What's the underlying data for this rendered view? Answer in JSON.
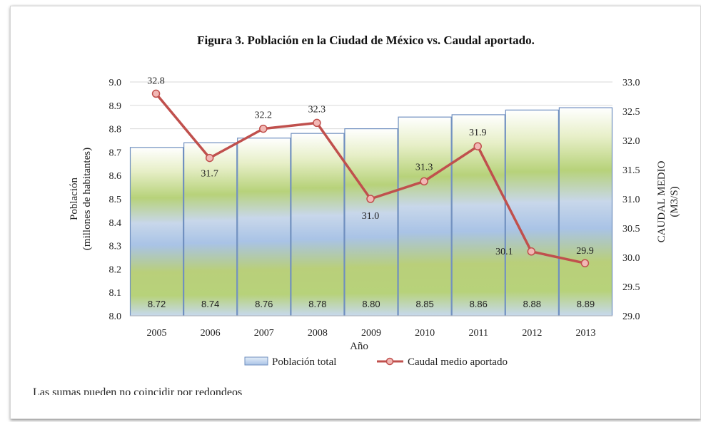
{
  "chart_data": {
    "type": "bar+line",
    "title": "Figura 3. Población en la Ciudad de México vs. Caudal aportado.",
    "xlabel": "Año",
    "ylabel_left": [
      "Población",
      "(millones de habitantes)"
    ],
    "ylabel_right": [
      "CAUDAL MEDIO",
      "(M3/S)"
    ],
    "categories": [
      "2005",
      "2006",
      "2007",
      "2008",
      "2009",
      "2010",
      "2011",
      "2012",
      "2013"
    ],
    "series": [
      {
        "name": "Población total",
        "type": "bar",
        "axis": "left",
        "values": [
          8.72,
          8.74,
          8.76,
          8.78,
          8.8,
          8.85,
          8.86,
          8.88,
          8.89
        ],
        "labels": [
          "8.72",
          "8.74",
          "8.76",
          "8.78",
          "8.80",
          "8.85",
          "8.86",
          "8.88",
          "8.89"
        ]
      },
      {
        "name": "Caudal medio aportado",
        "type": "line",
        "axis": "right",
        "values": [
          32.8,
          31.7,
          32.2,
          32.3,
          31.0,
          31.3,
          31.9,
          30.1,
          29.9
        ],
        "labels": [
          "32.8",
          "31.7",
          "32.2",
          "32.3",
          "31.0",
          "31.3",
          "31.9",
          "30.1",
          "29.9"
        ]
      }
    ],
    "ylim_left": [
      8.0,
      9.0
    ],
    "yticks_left": [
      "8.0",
      "8.1",
      "8.2",
      "8.3",
      "8.4",
      "8.5",
      "8.6",
      "8.7",
      "8.8",
      "8.9",
      "9.0"
    ],
    "ylim_right": [
      29.0,
      33.0
    ],
    "yticks_right": [
      "29.0",
      "29.5",
      "30.0",
      "30.5",
      "31.0",
      "31.5",
      "32.0",
      "32.5",
      "33.0"
    ],
    "grid": true,
    "legend_position": "bottom",
    "colors": {
      "bar_border": "#6f8fbf",
      "line": "#c0504d",
      "marker_fill": "#f2b8b5",
      "grid": "#d9d9d9"
    }
  },
  "footnote": "Las sumas pueden no coincidir por redondeos"
}
